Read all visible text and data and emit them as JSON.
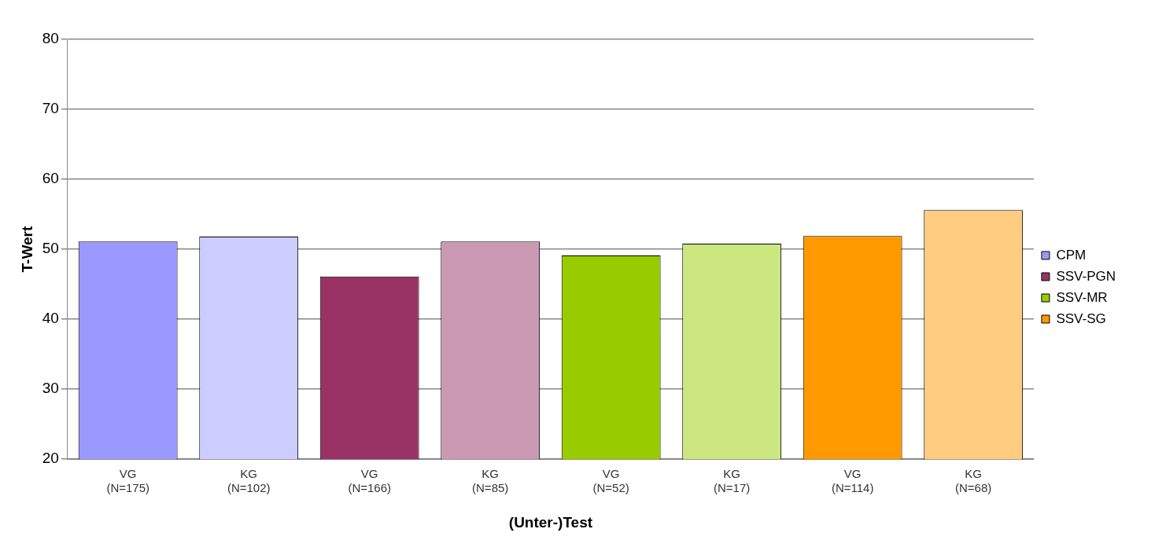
{
  "chart_data": {
    "type": "bar",
    "xlabel": "(Unter-)Test",
    "ylabel": "T-Wert",
    "categories": [
      "VG\n(N=175)",
      "KG\n(N=102)",
      "VG\n(N=166)",
      "KG\n(N=85)",
      "VG\n(N=52)",
      "KG\n(N=17)",
      "VG\n(N=114)",
      "KG\n(N=68)"
    ],
    "series": [
      {
        "name": "CPM",
        "color": "#9999ff",
        "colors": [
          "#9999ff",
          "#ccccff",
          null,
          null,
          null,
          null,
          null,
          null
        ],
        "values": [
          51.1,
          51.8,
          null,
          null,
          null,
          null,
          null,
          null
        ]
      },
      {
        "name": "SSV-PGN",
        "color": "#993366",
        "colors": [
          null,
          null,
          "#993366",
          "#cc99b3",
          null,
          null,
          null,
          null
        ],
        "values": [
          null,
          null,
          46.1,
          51.1,
          null,
          null,
          null,
          null
        ]
      },
      {
        "name": "SSV-MR",
        "color": "#99cc00",
        "colors": [
          null,
          null,
          null,
          null,
          "#99cc00",
          "#cce680",
          null,
          null
        ],
        "values": [
          null,
          null,
          null,
          null,
          49.1,
          50.8,
          null,
          null
        ]
      },
      {
        "name": "SSV-SG",
        "color": "#ff9900",
        "colors": [
          null,
          null,
          null,
          null,
          null,
          null,
          "#ff9900",
          "#ffcc80"
        ],
        "values": [
          null,
          null,
          null,
          null,
          null,
          null,
          51.9,
          55.6
        ]
      }
    ],
    "ylim": [
      20,
      80
    ],
    "yticks": [
      20,
      30,
      40,
      50,
      60,
      70,
      80
    ],
    "grid": "y",
    "legend": "right"
  }
}
